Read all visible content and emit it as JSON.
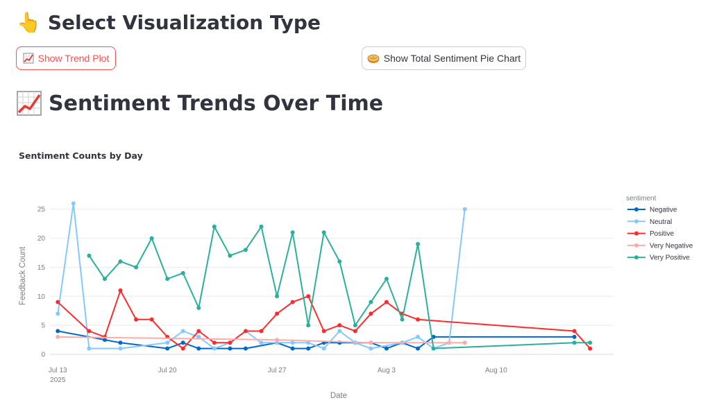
{
  "header": {
    "title": "Select Visualization Type",
    "icon": "pointing-hand-icon"
  },
  "buttons": {
    "trend": {
      "label": "Show Trend Plot",
      "icon": "chart-increasing-icon",
      "active_color": "#ff4b4b"
    },
    "pie": {
      "label": "Show Total Sentiment Pie Chart",
      "icon": "pie-icon"
    }
  },
  "section": {
    "title": "Sentiment Trends Over Time",
    "icon": "chart-increasing-icon"
  },
  "chart_data": {
    "type": "line",
    "title": "Sentiment Counts by Day",
    "xlabel": "Date",
    "ylabel": "Feedback Count",
    "ylim": [
      0,
      27
    ],
    "xlim": [
      "2025-07-13",
      "2025-08-17"
    ],
    "yticks": [
      0,
      5,
      10,
      15,
      20,
      25
    ],
    "xticks": [
      {
        "date": "2025-07-13",
        "label": "Jul 13",
        "sublabel": "2025"
      },
      {
        "date": "2025-07-20",
        "label": "Jul 20"
      },
      {
        "date": "2025-07-27",
        "label": "Jul 27"
      },
      {
        "date": "2025-08-03",
        "label": "Aug 3"
      },
      {
        "date": "2025-08-10",
        "label": "Aug 10"
      }
    ],
    "grid": true,
    "legend_title": "sentiment",
    "legend_position": "right",
    "series": [
      {
        "name": "Negative",
        "color": "#0068c9",
        "points": [
          [
            "2025-07-13",
            4
          ],
          [
            "2025-07-16",
            2.5
          ],
          [
            "2025-07-17",
            2
          ],
          [
            "2025-07-20",
            1
          ],
          [
            "2025-07-21",
            2
          ],
          [
            "2025-07-22",
            1
          ],
          [
            "2025-07-24",
            1
          ],
          [
            "2025-07-25",
            1
          ],
          [
            "2025-07-27",
            2
          ],
          [
            "2025-07-28",
            1
          ],
          [
            "2025-07-29",
            1
          ],
          [
            "2025-07-30",
            2
          ],
          [
            "2025-07-31",
            2
          ],
          [
            "2025-08-01",
            2
          ],
          [
            "2025-08-02",
            2
          ],
          [
            "2025-08-03",
            1
          ],
          [
            "2025-08-04",
            2
          ],
          [
            "2025-08-05",
            1
          ],
          [
            "2025-08-06",
            3
          ],
          [
            "2025-08-15",
            3
          ]
        ]
      },
      {
        "name": "Neutral",
        "color": "#83c9ff",
        "points": [
          [
            "2025-07-13",
            7
          ],
          [
            "2025-07-14",
            26
          ],
          [
            "2025-07-15",
            1
          ],
          [
            "2025-07-17",
            1
          ],
          [
            "2025-07-20",
            2
          ],
          [
            "2025-07-21",
            4
          ],
          [
            "2025-07-22",
            3
          ],
          [
            "2025-07-23",
            1
          ],
          [
            "2025-07-24",
            2
          ],
          [
            "2025-07-25",
            4
          ],
          [
            "2025-07-26",
            2
          ],
          [
            "2025-07-27",
            2
          ],
          [
            "2025-07-28",
            2
          ],
          [
            "2025-07-29",
            2
          ],
          [
            "2025-07-30",
            1
          ],
          [
            "2025-07-31",
            4
          ],
          [
            "2025-08-01",
            2
          ],
          [
            "2025-08-02",
            1
          ],
          [
            "2025-08-04",
            2
          ],
          [
            "2025-08-05",
            3
          ],
          [
            "2025-08-06",
            1
          ],
          [
            "2025-08-07",
            2
          ],
          [
            "2025-08-08",
            25
          ]
        ]
      },
      {
        "name": "Positive",
        "color": "#ff2b2b",
        "points": [
          [
            "2025-07-13",
            9
          ],
          [
            "2025-07-15",
            4
          ],
          [
            "2025-07-16",
            3
          ],
          [
            "2025-07-17",
            11
          ],
          [
            "2025-07-18",
            6
          ],
          [
            "2025-07-19",
            6
          ],
          [
            "2025-07-20",
            3
          ],
          [
            "2025-07-21",
            1
          ],
          [
            "2025-07-22",
            4
          ],
          [
            "2025-07-23",
            2
          ],
          [
            "2025-07-24",
            2
          ],
          [
            "2025-07-25",
            4
          ],
          [
            "2025-07-26",
            4
          ],
          [
            "2025-07-27",
            7
          ],
          [
            "2025-07-28",
            9
          ],
          [
            "2025-07-29",
            10
          ],
          [
            "2025-07-30",
            4
          ],
          [
            "2025-07-31",
            5
          ],
          [
            "2025-08-01",
            4
          ],
          [
            "2025-08-02",
            7
          ],
          [
            "2025-08-03",
            9
          ],
          [
            "2025-08-04",
            7
          ],
          [
            "2025-08-05",
            6
          ],
          [
            "2025-08-15",
            4
          ],
          [
            "2025-08-16",
            1
          ]
        ]
      },
      {
        "name": "Very Negative",
        "color": "#ffabab",
        "points": [
          [
            "2025-07-13",
            3
          ],
          [
            "2025-07-27",
            2.5
          ],
          [
            "2025-08-02",
            2
          ],
          [
            "2025-08-07",
            2
          ],
          [
            "2025-08-08",
            2
          ]
        ]
      },
      {
        "name": "Very Positive",
        "color": "#29b09d",
        "points": [
          [
            "2025-07-15",
            17
          ],
          [
            "2025-07-16",
            13
          ],
          [
            "2025-07-17",
            16
          ],
          [
            "2025-07-18",
            15
          ],
          [
            "2025-07-19",
            20
          ],
          [
            "2025-07-20",
            13
          ],
          [
            "2025-07-21",
            14
          ],
          [
            "2025-07-22",
            8
          ],
          [
            "2025-07-23",
            22
          ],
          [
            "2025-07-24",
            17
          ],
          [
            "2025-07-25",
            18
          ],
          [
            "2025-07-26",
            22
          ],
          [
            "2025-07-27",
            10
          ],
          [
            "2025-07-28",
            21
          ],
          [
            "2025-07-29",
            5
          ],
          [
            "2025-07-30",
            21
          ],
          [
            "2025-07-31",
            16
          ],
          [
            "2025-08-01",
            5
          ],
          [
            "2025-08-02",
            9
          ],
          [
            "2025-08-03",
            13
          ],
          [
            "2025-08-04",
            6
          ],
          [
            "2025-08-05",
            19
          ],
          [
            "2025-08-06",
            1
          ],
          [
            "2025-08-15",
            2
          ],
          [
            "2025-08-16",
            2
          ]
        ]
      }
    ]
  }
}
